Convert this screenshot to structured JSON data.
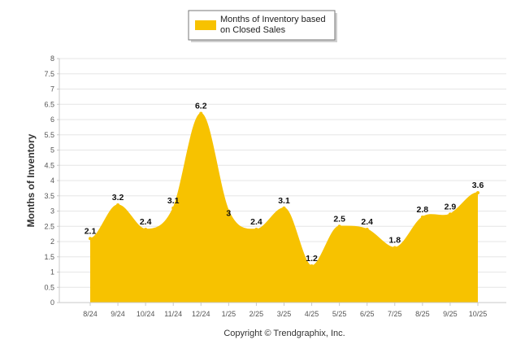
{
  "chart_data": {
    "type": "area",
    "title": "",
    "categories": [
      "8/24",
      "9/24",
      "10/24",
      "11/24",
      "12/24",
      "1/25",
      "2/25",
      "3/25",
      "4/25",
      "5/25",
      "6/25",
      "7/25",
      "8/25",
      "9/25",
      "10/25"
    ],
    "series": [
      {
        "name": "Months of Inventory based on Closed Sales",
        "legend_lines": [
          "Months of Inventory based",
          "on Closed Sales"
        ],
        "values": [
          2.1,
          3.2,
          2.4,
          3.1,
          6.2,
          3,
          2.4,
          3.1,
          1.2,
          2.5,
          2.4,
          1.8,
          2.8,
          2.9,
          3.6
        ],
        "labels": [
          "2.1",
          "3.2",
          "2.4",
          "3.1",
          "6.2",
          "3",
          "2.4",
          "3.1",
          "1.2",
          "2.5",
          "2.4",
          "1.8",
          "2.8",
          "2.9",
          "3.6"
        ],
        "color": "#f7c200"
      }
    ],
    "xlabel": "",
    "ylabel": "Months of Inventory",
    "ylim": [
      0,
      8
    ],
    "yticks": [
      "0",
      "0.5",
      "1",
      "1.5",
      "2",
      "2.5",
      "3",
      "3.5",
      "4",
      "4.5",
      "5",
      "5.5",
      "6",
      "6.5",
      "7",
      "7.5",
      "8"
    ],
    "grid": true,
    "legend_position": "top-center"
  },
  "footer": {
    "copyright": "Copyright © Trendgraphix, Inc."
  }
}
